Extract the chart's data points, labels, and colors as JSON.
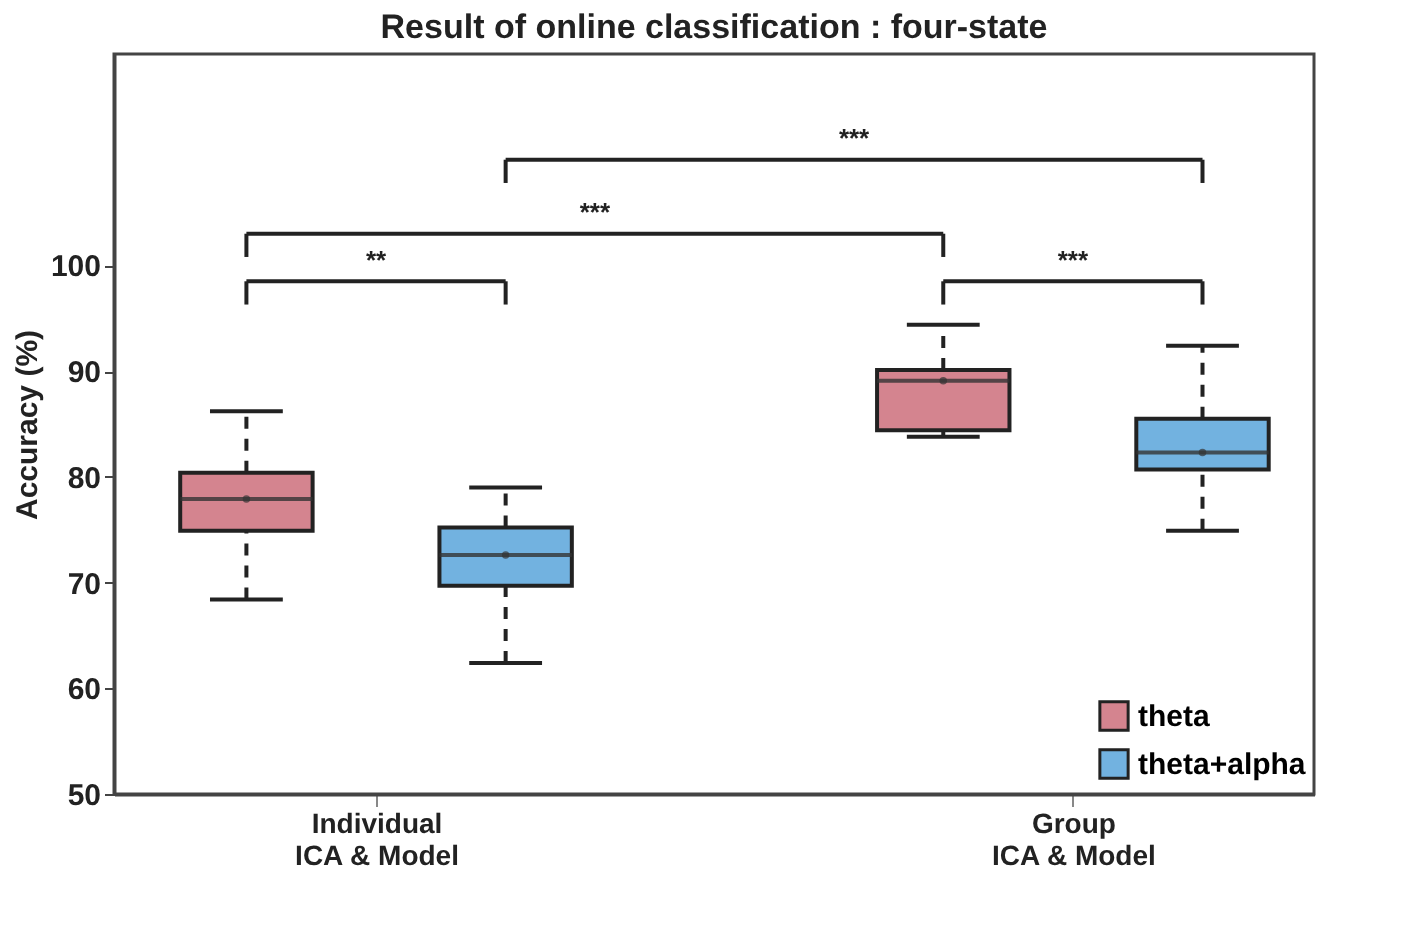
{
  "chart_data": {
    "type": "box",
    "title": "Result of online classification : four-state",
    "ylabel": "Accuracy (%)",
    "categories": [
      "Individual\nICA & Model",
      "Group\nICA & Model"
    ],
    "series": [
      {
        "name": "theta",
        "color": "#d4848f",
        "boxes": [
          {
            "low": 68.4,
            "q1": 74.9,
            "median": 77.9,
            "q3": 80.4,
            "high": 86.2,
            "mean": 77.9
          },
          {
            "low": 83.8,
            "q1": 84.4,
            "median": 89.1,
            "q3": 90.1,
            "high": 94.4,
            "mean": 89.1
          }
        ]
      },
      {
        "name": "theta+alpha",
        "color": "#72b2e0",
        "boxes": [
          {
            "low": 62.4,
            "q1": 69.7,
            "median": 72.6,
            "q3": 75.2,
            "high": 79.0,
            "mean": 72.6
          },
          {
            "low": 74.9,
            "q1": 80.7,
            "median": 82.3,
            "q3": 85.5,
            "high": 92.4,
            "mean": 82.3
          }
        ]
      }
    ],
    "ylim": [
      50,
      120
    ],
    "yticks": [
      50,
      60,
      70,
      80,
      90,
      100
    ],
    "annotations": [
      "**",
      "***",
      "***",
      "***"
    ],
    "legend": "bottom right",
    "grid": false
  }
}
